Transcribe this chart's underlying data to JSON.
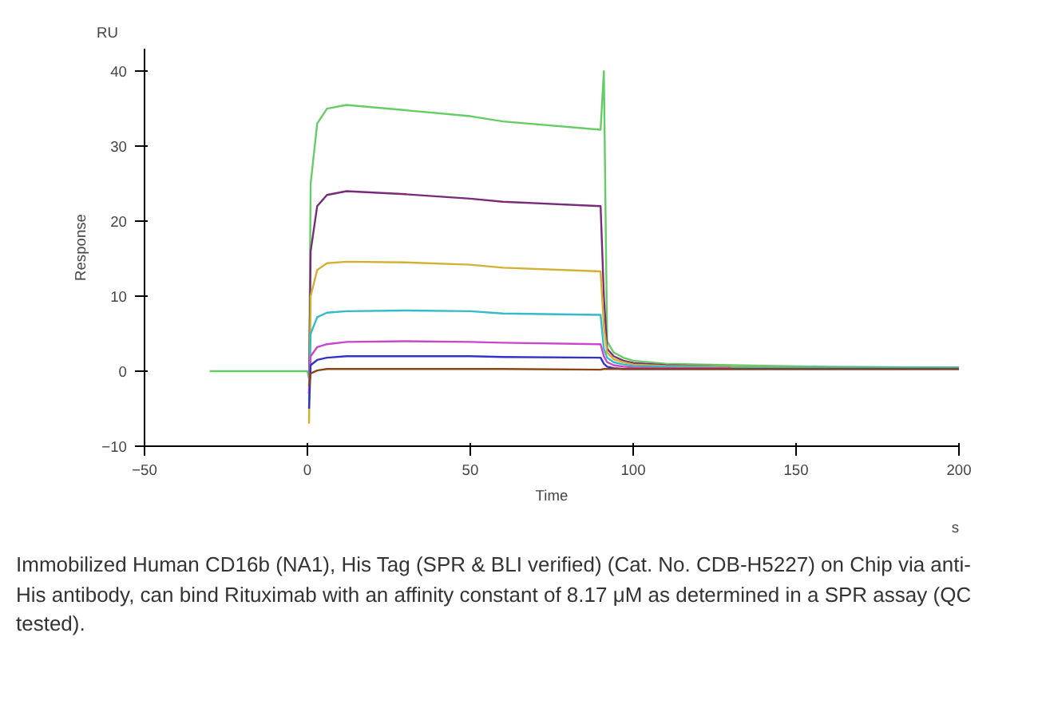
{
  "chart_data": {
    "type": "line",
    "xlabel": "Time",
    "ylabel": "Response",
    "x": [
      -30,
      0,
      0.5,
      1,
      3,
      6,
      12,
      30,
      50,
      60,
      90,
      91,
      92,
      94,
      97,
      100,
      110,
      130,
      160,
      200
    ],
    "series": [
      {
        "color": "#66cc66",
        "values": [
          0,
          0,
          -1,
          25,
          33,
          35,
          35.5,
          34.8,
          34,
          33.3,
          32.2,
          40,
          4,
          2.5,
          1.8,
          1.4,
          1,
          0.8,
          0.6,
          0.5
        ]
      },
      {
        "color": "#7a2a7a",
        "values": [
          null,
          null,
          -3,
          16,
          22,
          23.5,
          24,
          23.6,
          23,
          22.6,
          22,
          10,
          3,
          2,
          1.4,
          1.1,
          0.8,
          0.6,
          null,
          null
        ]
      },
      {
        "color": "#d4b030",
        "values": [
          null,
          null,
          -7,
          10,
          13.5,
          14.4,
          14.6,
          14.5,
          14.2,
          13.8,
          13.3,
          6,
          2.5,
          1.6,
          1.2,
          0.9,
          0.7,
          0.6,
          0.5,
          0.5
        ]
      },
      {
        "color": "#33bbcc",
        "values": [
          null,
          null,
          -4,
          5,
          7.2,
          7.8,
          8,
          8.1,
          8,
          7.7,
          7.5,
          3,
          1.8,
          1.2,
          0.9,
          0.7,
          0.6,
          0.5,
          0.5,
          0.5
        ]
      },
      {
        "color": "#cc44cc",
        "values": [
          null,
          null,
          -3,
          2,
          3.2,
          3.6,
          3.9,
          4,
          3.9,
          3.8,
          3.6,
          2,
          1.2,
          0.8,
          0.6,
          0.5,
          0.4,
          0.4,
          null,
          null
        ]
      },
      {
        "color": "#3333cc",
        "values": [
          null,
          null,
          -5,
          0.8,
          1.5,
          1.8,
          2,
          2,
          2,
          1.9,
          1.8,
          1,
          0.6,
          0.4,
          0.3,
          0.3,
          0.3,
          0.3,
          0.3,
          0.3
        ]
      },
      {
        "color": "#8b4513",
        "values": [
          null,
          null,
          -2,
          -0.3,
          0.1,
          0.3,
          0.3,
          0.3,
          0.3,
          0.3,
          0.2,
          0.3,
          0.3,
          0.3,
          0.3,
          0.3,
          0.3,
          0.3,
          0.3,
          0.3
        ]
      }
    ],
    "xlim": [
      -50,
      200
    ],
    "ylim": [
      -10,
      43
    ],
    "xticks": [
      -50,
      0,
      50,
      100,
      150,
      200
    ],
    "yticks": [
      -10,
      0,
      10,
      20,
      30,
      40
    ],
    "grid": false,
    "marker": "none",
    "line_style": "solid",
    "annotations": [
      "RU",
      "s",
      "Immobilized Human CD16b (NA1), His Tag (SPR & BLI verified) (Cat. No. CDB-H5227) on Chip via anti-His antibody, can bind Rituximab with an affinity constant of 8.17 μM as determined in a SPR assay (QC tested)."
    ]
  }
}
